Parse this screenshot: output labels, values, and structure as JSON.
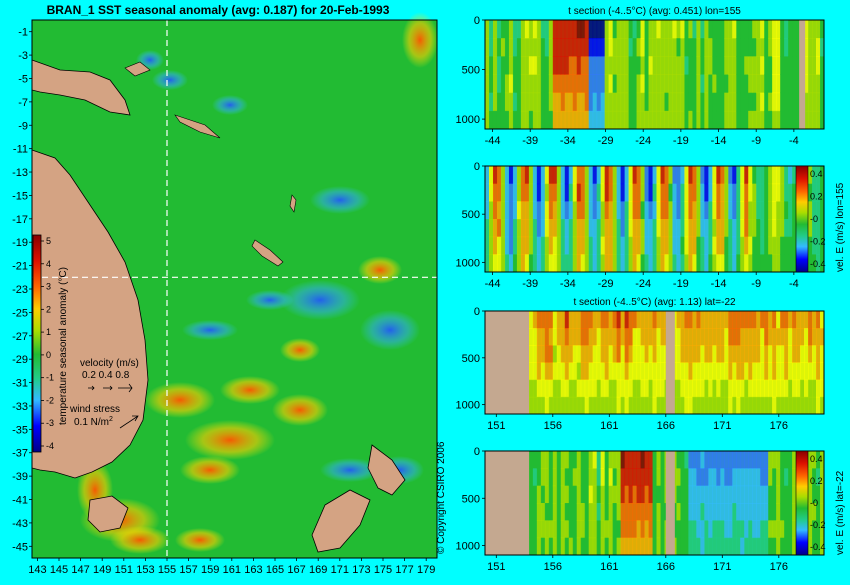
{
  "background_color": "#00ffff",
  "copyright": "© Copyright CSIRO 2006",
  "colors": {
    "ocean": "#22bb33",
    "land": "#d4a383",
    "section_land": "#c4a890",
    "anomaly_scale": [
      "#000088",
      "#0000ff",
      "#3377ff",
      "#33bbff",
      "#22cc55",
      "#22bb33",
      "#aadd00",
      "#ffff00",
      "#ffaa00",
      "#ff6600",
      "#dd1100",
      "#880000"
    ]
  },
  "map": {
    "title": "BRAN_1 SST seasonal anomaly (avg: 0.187) for 20-Feb-1993",
    "lat_ticks": [
      "-1",
      "-3",
      "-5",
      "-7",
      "-9",
      "-11",
      "-13",
      "-15",
      "-17",
      "-19",
      "-21",
      "-23",
      "-25",
      "-27",
      "-29",
      "-31",
      "-33",
      "-35",
      "-37",
      "-39",
      "-41",
      "-43",
      "-45"
    ],
    "lon_ticks": [
      "143",
      "145",
      "147",
      "149",
      "151",
      "153",
      "155",
      "157",
      "159",
      "161",
      "163",
      "165",
      "167",
      "169",
      "171",
      "173",
      "175",
      "177",
      "179"
    ],
    "colorbar": {
      "label": "temperature seasonal anomaly (°C)",
      "ticks": [
        "5",
        "4",
        "3",
        "2",
        "1",
        "0",
        "-1",
        "-2",
        "-3",
        "-4"
      ],
      "range": [
        -4,
        5
      ]
    },
    "velocity_legend": {
      "label": "velocity (m/s)",
      "values": "0.2 0.4 0.8"
    },
    "wind_legend": {
      "label": "wind stress",
      "value": "0.1 N/m",
      "sup": "2"
    },
    "crosshair": {
      "lat": -22,
      "lon": 155
    }
  },
  "chart_data": [
    {
      "type": "heatmap",
      "title": "t section (-4..5°C) (avg: 0.451) lon=155",
      "x_ticks": [
        "-44",
        "-39",
        "-34",
        "-29",
        "-24",
        "-19",
        "-14",
        "-9",
        "-4"
      ],
      "xlim": [
        -45,
        0
      ],
      "y_ticks": [
        "0",
        "500",
        "1000"
      ],
      "ylim": [
        1100,
        0
      ],
      "land_columns": [
        [
          -3.3,
          -2.5
        ]
      ]
    },
    {
      "type": "heatmap",
      "title": "",
      "x_ticks": [
        "-44",
        "-39",
        "-34",
        "-29",
        "-24",
        "-19",
        "-14",
        "-9",
        "-4"
      ],
      "xlim": [
        -45,
        0
      ],
      "y_ticks": [
        "0",
        "500",
        "1000"
      ],
      "ylim": [
        1100,
        0
      ],
      "land_columns": [
        [
          -3.3,
          -2.5
        ]
      ],
      "colorbar": {
        "label": "vel. E (m/s) lon=155",
        "ticks": [
          "0.4",
          "0.2",
          "-0",
          "-0.2",
          "-0.4"
        ]
      }
    },
    {
      "type": "heatmap",
      "title": "t section (-4..5°C) (avg: 1.13) lat=-22",
      "x_ticks": [
        "151",
        "156",
        "161",
        "166",
        "171",
        "176"
      ],
      "xlim": [
        150,
        180
      ],
      "y_ticks": [
        "0",
        "500",
        "1000"
      ],
      "ylim": [
        1100,
        0
      ],
      "land_columns": [
        [
          150,
          153.9
        ],
        [
          166,
          166.8
        ]
      ]
    },
    {
      "type": "heatmap",
      "title": "",
      "x_ticks": [
        "151",
        "156",
        "161",
        "166",
        "171",
        "176"
      ],
      "xlim": [
        150,
        180
      ],
      "y_ticks": [
        "0",
        "500",
        "1000"
      ],
      "ylim": [
        1100,
        0
      ],
      "land_columns": [
        [
          150,
          153.9
        ],
        [
          166,
          166.8
        ]
      ],
      "colorbar": {
        "label": "vel. E (m/s) lat=-22",
        "ticks": [
          "0.4",
          "0.2",
          "-0",
          "-0.2",
          "-0.4"
        ]
      }
    }
  ]
}
